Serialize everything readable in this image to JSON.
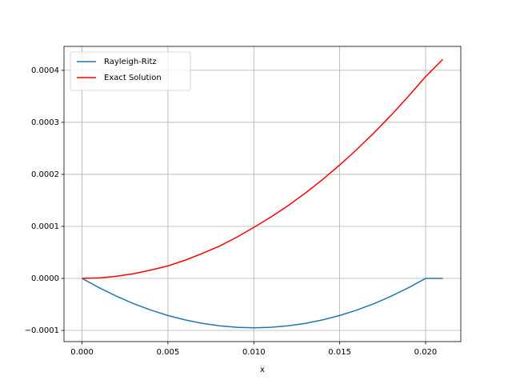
{
  "chart_data": {
    "type": "line",
    "x_label": "x",
    "x": [
      0,
      0.001,
      0.002,
      0.003,
      0.004,
      0.005,
      0.006,
      0.007,
      0.008,
      0.009,
      0.01,
      0.011,
      0.012,
      0.013,
      0.014,
      0.015,
      0.016,
      0.017,
      0.018,
      0.019,
      0.02,
      0.021
    ],
    "series": [
      {
        "name": "Rayleigh-Ritz",
        "color": "#1f77b4",
        "values": [
          0,
          -1.8e-05,
          -3.42e-05,
          -4.85e-05,
          -6.08e-05,
          -7.13e-05,
          -7.98e-05,
          -8.65e-05,
          -9.12e-05,
          -9.4e-05,
          -9.5e-05,
          -9.4e-05,
          -9.12e-05,
          -8.65e-05,
          -7.98e-05,
          -7.13e-05,
          -6.08e-05,
          -4.85e-05,
          -3.42e-05,
          -1.8e-05,
          0,
          0
        ]
      },
      {
        "name": "Exact Solution",
        "color": "#ff0000",
        "values": [
          0,
          1e-06,
          4e-06,
          9e-06,
          1.6e-05,
          2.4e-05,
          3.5e-05,
          4.8e-05,
          6.2e-05,
          7.9e-05,
          9.8e-05,
          0.000118,
          0.00014,
          0.000164,
          0.00019,
          0.000218,
          0.000248,
          0.00028,
          0.000314,
          0.00035,
          0.000388,
          0.000421
        ]
      }
    ],
    "xlim": [
      -0.00105,
      0.02205
    ],
    "xticks": [
      {
        "value": 0,
        "label": "0.000"
      },
      {
        "value": 0.005,
        "label": "0.005"
      },
      {
        "value": 0.01,
        "label": "0.010"
      },
      {
        "value": 0.015,
        "label": "0.015"
      },
      {
        "value": 0.02,
        "label": "0.020"
      }
    ],
    "ylim": [
      -0.0001215,
      0.000446
    ],
    "yticks": [
      {
        "value": -0.0001,
        "label": "−0.0001"
      },
      {
        "value": 0,
        "label": "0.0000"
      },
      {
        "value": 0.0001,
        "label": "0.0001"
      },
      {
        "value": 0.0002,
        "label": "0.0002"
      },
      {
        "value": 0.0003,
        "label": "0.0003"
      },
      {
        "value": 0.0004,
        "label": "0.0004"
      }
    ],
    "grid": true,
    "legend": "upper-left"
  }
}
